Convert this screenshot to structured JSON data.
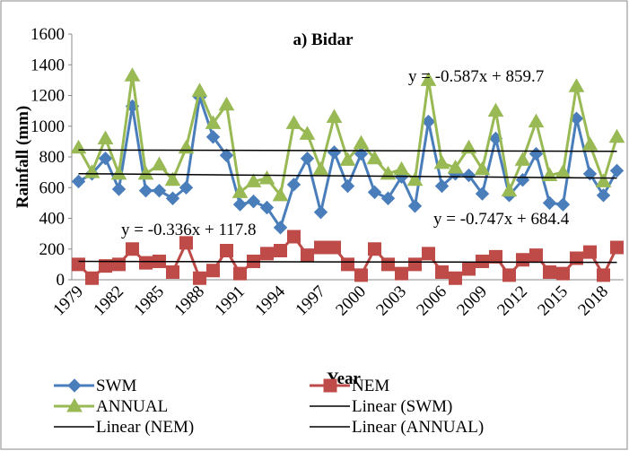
{
  "chart_data": {
    "type": "line",
    "title": "a) Bidar",
    "x_label": "Year",
    "y_label": "Rainfall (mm)",
    "categories": [
      "1979",
      null,
      null,
      "1982",
      null,
      null,
      "1985",
      null,
      null,
      "1988",
      null,
      null,
      "1991",
      null,
      null,
      "1994",
      null,
      null,
      "1997",
      null,
      null,
      "2000",
      null,
      null,
      "2003",
      null,
      null,
      "2006",
      null,
      null,
      "2009",
      null,
      null,
      "2012",
      null,
      null,
      "2015",
      null,
      null,
      "2018",
      null
    ],
    "series": [
      {
        "name": "SWM",
        "color": "#4a7ebb",
        "marker": "diamond",
        "values": [
          640,
          690,
          790,
          590,
          1130,
          580,
          580,
          530,
          600,
          1190,
          930,
          810,
          490,
          510,
          470,
          340,
          620,
          790,
          440,
          830,
          610,
          820,
          570,
          530,
          670,
          480,
          1030,
          610,
          690,
          680,
          560,
          920,
          550,
          650,
          820,
          500,
          490,
          1050,
          690,
          550,
          710
        ]
      },
      {
        "name": "NEM",
        "color": "#be4b48",
        "marker": "square",
        "values": [
          100,
          10,
          90,
          100,
          200,
          110,
          120,
          50,
          240,
          10,
          60,
          190,
          40,
          120,
          170,
          190,
          280,
          160,
          210,
          210,
          100,
          30,
          200,
          100,
          40,
          100,
          170,
          50,
          10,
          70,
          120,
          150,
          30,
          130,
          160,
          50,
          40,
          140,
          180,
          30,
          210
        ]
      },
      {
        "name": "ANNUAL",
        "color": "#98b954",
        "marker": "triangle",
        "values": [
          860,
          700,
          920,
          690,
          1330,
          690,
          750,
          650,
          860,
          1230,
          1020,
          1140,
          570,
          640,
          660,
          550,
          1020,
          950,
          720,
          1060,
          780,
          890,
          790,
          690,
          720,
          650,
          1300,
          760,
          730,
          860,
          720,
          1100,
          580,
          780,
          1030,
          680,
          700,
          1260,
          880,
          640,
          930
        ]
      }
    ],
    "trendlines": [
      {
        "name": "Linear (SWM)",
        "equation": "y = -0.747x + 684.4",
        "color": "#000000"
      },
      {
        "name": "Linear (NEM)",
        "equation": "y = -0.336x + 117.8",
        "color": "#000000"
      },
      {
        "name": "Linear (ANNUAL)",
        "equation": "y = -0.587x + 859.7",
        "color": "#000000"
      }
    ],
    "ylim": [
      0,
      1600
    ],
    "yticks": [
      0,
      200,
      400,
      600,
      800,
      1000,
      1200,
      1400,
      1600
    ],
    "grid": false
  }
}
